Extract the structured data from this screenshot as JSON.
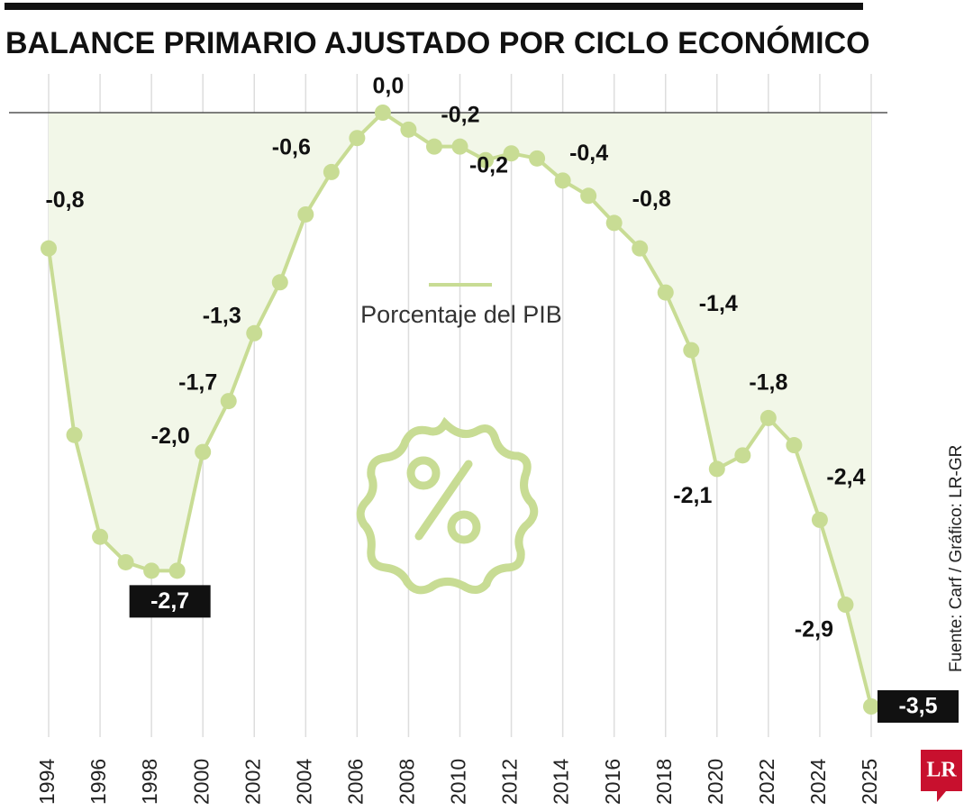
{
  "chart_data": {
    "type": "line",
    "title": "BALANCE PRIMARIO AJUSTADO POR CICLO ECONÓMICO",
    "categories": [
      "1994",
      null,
      "1996",
      null,
      "1998",
      null,
      "2000",
      null,
      "2002",
      null,
      "2004",
      null,
      "2006",
      null,
      "2008",
      null,
      "2010",
      null,
      "2012",
      null,
      "2014",
      null,
      "2016",
      null,
      "2018",
      null,
      "2020",
      null,
      "2022",
      null,
      "2024",
      null,
      "2025"
    ],
    "series": [
      {
        "name": "Porcentaje del PIB",
        "color": "#c8dc94",
        "values": [
          -0.8,
          -1.9,
          -2.5,
          -2.65,
          -2.7,
          -2.7,
          -2.0,
          -1.7,
          -1.3,
          -1.0,
          -0.6,
          -0.35,
          -0.15,
          0.0,
          -0.1,
          -0.2,
          -0.2,
          -0.28,
          -0.24,
          -0.27,
          -0.4,
          -0.49,
          -0.65,
          -0.8,
          -1.06,
          -1.4,
          -2.1,
          -2.02,
          -1.8,
          -1.96,
          -2.4,
          -2.9,
          -3.5
        ],
        "value_labels": [
          "-0,8",
          null,
          null,
          null,
          null,
          "-2,7",
          "-2,0",
          "-1,7",
          "-1,3",
          null,
          "-0,6",
          null,
          null,
          "0,0",
          null,
          "-0,2",
          "-0,2",
          null,
          null,
          null,
          "-0,4",
          null,
          null,
          "-0,8",
          null,
          "-1,4",
          "-2,1",
          null,
          "-1,8",
          null,
          "-2,4",
          "-2,9",
          "-3,5"
        ]
      }
    ],
    "highlight": [
      5,
      32
    ],
    "area_color": "#f2f7e8",
    "ylim": [
      -3.5,
      0
    ],
    "source": "Fuente: Carf / Gráfico: LR-GR",
    "logo": "LR"
  }
}
